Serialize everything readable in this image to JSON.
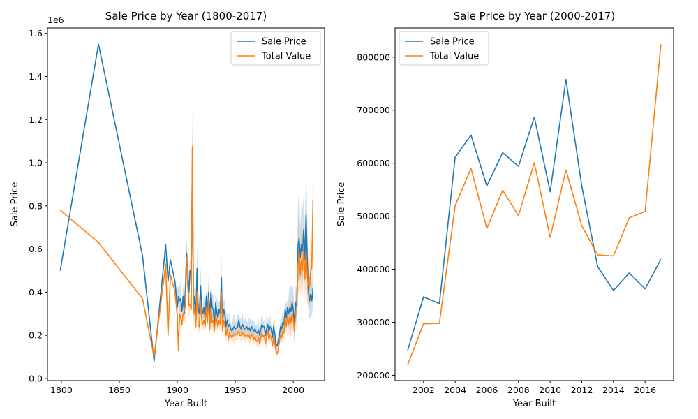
{
  "colors": {
    "sale": "#1f77b4",
    "total": "#ff7f0e"
  },
  "chart_data": [
    {
      "type": "line",
      "title": "Sale Price by Year (1800-2017)",
      "xlabel": "Year Built",
      "ylabel": "Sale Price",
      "offset_text": "1e6",
      "xlim": [
        1788,
        2027
      ],
      "ylim": [
        -10000,
        1625000
      ],
      "xticks": [
        1800,
        1850,
        1900,
        1950,
        2000
      ],
      "yticks": [
        0,
        200000,
        400000,
        600000,
        800000,
        1000000,
        1200000,
        1400000,
        1600000
      ],
      "ytick_labels": [
        "0.0",
        "0.2",
        "0.4",
        "0.6",
        "0.8",
        "1.0",
        "1.2",
        "1.4",
        "1.6"
      ],
      "legend_position": "top-right",
      "series": [
        {
          "name": "Sale Price",
          "color": "#1f77b4",
          "x": [
            1799,
            1832,
            1870,
            1880,
            1890,
            1892,
            1894,
            1898,
            1900,
            1901,
            1902,
            1903,
            1904,
            1905,
            1906,
            1907,
            1908,
            1909,
            1910,
            1911,
            1912,
            1913,
            1914,
            1915,
            1916,
            1917,
            1918,
            1919,
            1920,
            1921,
            1922,
            1923,
            1924,
            1925,
            1926,
            1927,
            1928,
            1929,
            1930,
            1931,
            1932,
            1933,
            1934,
            1935,
            1936,
            1937,
            1938,
            1939,
            1940,
            1941,
            1942,
            1943,
            1944,
            1945,
            1946,
            1947,
            1948,
            1949,
            1950,
            1951,
            1952,
            1953,
            1954,
            1955,
            1956,
            1957,
            1958,
            1959,
            1960,
            1961,
            1962,
            1963,
            1964,
            1965,
            1966,
            1967,
            1968,
            1969,
            1970,
            1971,
            1972,
            1973,
            1974,
            1975,
            1976,
            1977,
            1978,
            1979,
            1980,
            1981,
            1982,
            1983,
            1984,
            1985,
            1986,
            1987,
            1988,
            1989,
            1990,
            1991,
            1992,
            1993,
            1994,
            1995,
            1996,
            1997,
            1998,
            1999,
            2000,
            2001,
            2002,
            2003,
            2004,
            2005,
            2006,
            2007,
            2008,
            2009,
            2010,
            2011,
            2012,
            2013,
            2014,
            2015,
            2016,
            2017
          ],
          "y": [
            500000,
            1550000,
            570000,
            80000,
            620000,
            450000,
            550000,
            450000,
            330000,
            380000,
            360000,
            370000,
            310000,
            380000,
            300000,
            420000,
            580000,
            480000,
            400000,
            500000,
            480000,
            1000000,
            330000,
            380000,
            280000,
            510000,
            320000,
            300000,
            430000,
            330000,
            300000,
            330000,
            280000,
            380000,
            310000,
            400000,
            280000,
            400000,
            330000,
            320000,
            250000,
            350000,
            310000,
            280000,
            320000,
            300000,
            470000,
            260000,
            320000,
            300000,
            240000,
            270000,
            240000,
            250000,
            230000,
            220000,
            230000,
            240000,
            230000,
            235000,
            240000,
            270000,
            240000,
            230000,
            250000,
            240000,
            230000,
            235000,
            240000,
            225000,
            235000,
            220000,
            240000,
            230000,
            220000,
            230000,
            215000,
            210000,
            225000,
            200000,
            230000,
            250000,
            240000,
            240000,
            200000,
            230000,
            250000,
            220000,
            240000,
            230000,
            190000,
            240000,
            210000,
            160000,
            150000,
            170000,
            200000,
            240000,
            230000,
            260000,
            250000,
            320000,
            280000,
            330000,
            300000,
            330000,
            310000,
            350000,
            320000,
            250000,
            350000,
            330000,
            610000,
            650000,
            560000,
            620000,
            590000,
            690000,
            550000,
            760000,
            560000,
            410000,
            360000,
            390000,
            360000,
            420000
          ]
        },
        {
          "name": "Total Value",
          "color": "#ff7f0e",
          "x": [
            1799,
            1832,
            1870,
            1880,
            1890,
            1892,
            1894,
            1898,
            1900,
            1901,
            1902,
            1903,
            1904,
            1905,
            1906,
            1907,
            1908,
            1909,
            1910,
            1911,
            1912,
            1913,
            1914,
            1915,
            1916,
            1917,
            1918,
            1919,
            1920,
            1921,
            1922,
            1923,
            1924,
            1925,
            1926,
            1927,
            1928,
            1929,
            1930,
            1931,
            1932,
            1933,
            1934,
            1935,
            1936,
            1937,
            1938,
            1939,
            1940,
            1941,
            1942,
            1943,
            1944,
            1945,
            1946,
            1947,
            1948,
            1949,
            1950,
            1951,
            1952,
            1953,
            1954,
            1955,
            1956,
            1957,
            1958,
            1959,
            1960,
            1961,
            1962,
            1963,
            1964,
            1965,
            1966,
            1967,
            1968,
            1969,
            1970,
            1971,
            1972,
            1973,
            1974,
            1975,
            1976,
            1977,
            1978,
            1979,
            1980,
            1981,
            1982,
            1983,
            1984,
            1985,
            1986,
            1987,
            1988,
            1989,
            1990,
            1991,
            1992,
            1993,
            1994,
            1995,
            1996,
            1997,
            1998,
            1999,
            2000,
            2001,
            2002,
            2003,
            2004,
            2005,
            2006,
            2007,
            2008,
            2009,
            2010,
            2011,
            2012,
            2013,
            2014,
            2015,
            2016,
            2017
          ],
          "y": [
            780000,
            630000,
            370000,
            100000,
            530000,
            200000,
            480000,
            400000,
            290000,
            130000,
            300000,
            280000,
            250000,
            300000,
            310000,
            340000,
            560000,
            440000,
            340000,
            340000,
            320000,
            1075000,
            300000,
            330000,
            240000,
            400000,
            250000,
            240000,
            350000,
            280000,
            250000,
            270000,
            240000,
            330000,
            260000,
            370000,
            230000,
            330000,
            260000,
            270000,
            220000,
            290000,
            270000,
            240000,
            270000,
            250000,
            400000,
            220000,
            270000,
            250000,
            200000,
            230000,
            180000,
            210000,
            200000,
            190000,
            200000,
            205000,
            200000,
            205000,
            210000,
            220000,
            200000,
            200000,
            215000,
            205000,
            195000,
            200000,
            205000,
            190000,
            200000,
            185000,
            205000,
            195000,
            180000,
            195000,
            175000,
            170000,
            190000,
            160000,
            190000,
            210000,
            195000,
            200000,
            160000,
            190000,
            220000,
            180000,
            200000,
            190000,
            150000,
            190000,
            165000,
            130000,
            115000,
            130000,
            170000,
            200000,
            190000,
            220000,
            210000,
            280000,
            240000,
            290000,
            250000,
            290000,
            260000,
            300000,
            280000,
            220000,
            300000,
            300000,
            520000,
            590000,
            480000,
            550000,
            500000,
            600000,
            460000,
            590000,
            480000,
            430000,
            425000,
            500000,
            510000,
            825000
          ]
        }
      ]
    },
    {
      "type": "line",
      "title": "Sale Price by Year (2000-2017)",
      "xlabel": "Year Built",
      "ylabel": "Sale Price",
      "xlim": [
        2000.2,
        2017.8
      ],
      "ylim": [
        190000,
        855000
      ],
      "xticks": [
        2002,
        2004,
        2006,
        2008,
        2010,
        2012,
        2014,
        2016
      ],
      "yticks": [
        200000,
        300000,
        400000,
        500000,
        600000,
        700000,
        800000
      ],
      "ytick_labels": [
        "200000",
        "300000",
        "400000",
        "500000",
        "600000",
        "700000",
        "800000"
      ],
      "legend_position": "top-left",
      "series": [
        {
          "name": "Sale Price",
          "color": "#1f77b4",
          "x": [
            2001,
            2002,
            2003,
            2004,
            2005,
            2006,
            2007,
            2008,
            2009,
            2010,
            2011,
            2012,
            2013,
            2014,
            2015,
            2016,
            2017
          ],
          "y": [
            247000,
            348000,
            335000,
            611000,
            653000,
            557000,
            620000,
            594000,
            687000,
            546000,
            758000,
            557000,
            405000,
            360000,
            393000,
            363000,
            419000
          ]
        },
        {
          "name": "Total Value",
          "color": "#ff7f0e",
          "x": [
            2001,
            2002,
            2003,
            2004,
            2005,
            2006,
            2007,
            2008,
            2009,
            2010,
            2011,
            2012,
            2013,
            2014,
            2015,
            2016,
            2017
          ],
          "y": [
            220000,
            297000,
            298000,
            520000,
            590000,
            477000,
            549000,
            501000,
            601000,
            460000,
            587000,
            482000,
            427000,
            425000,
            497000,
            509000,
            824000
          ]
        }
      ]
    }
  ]
}
